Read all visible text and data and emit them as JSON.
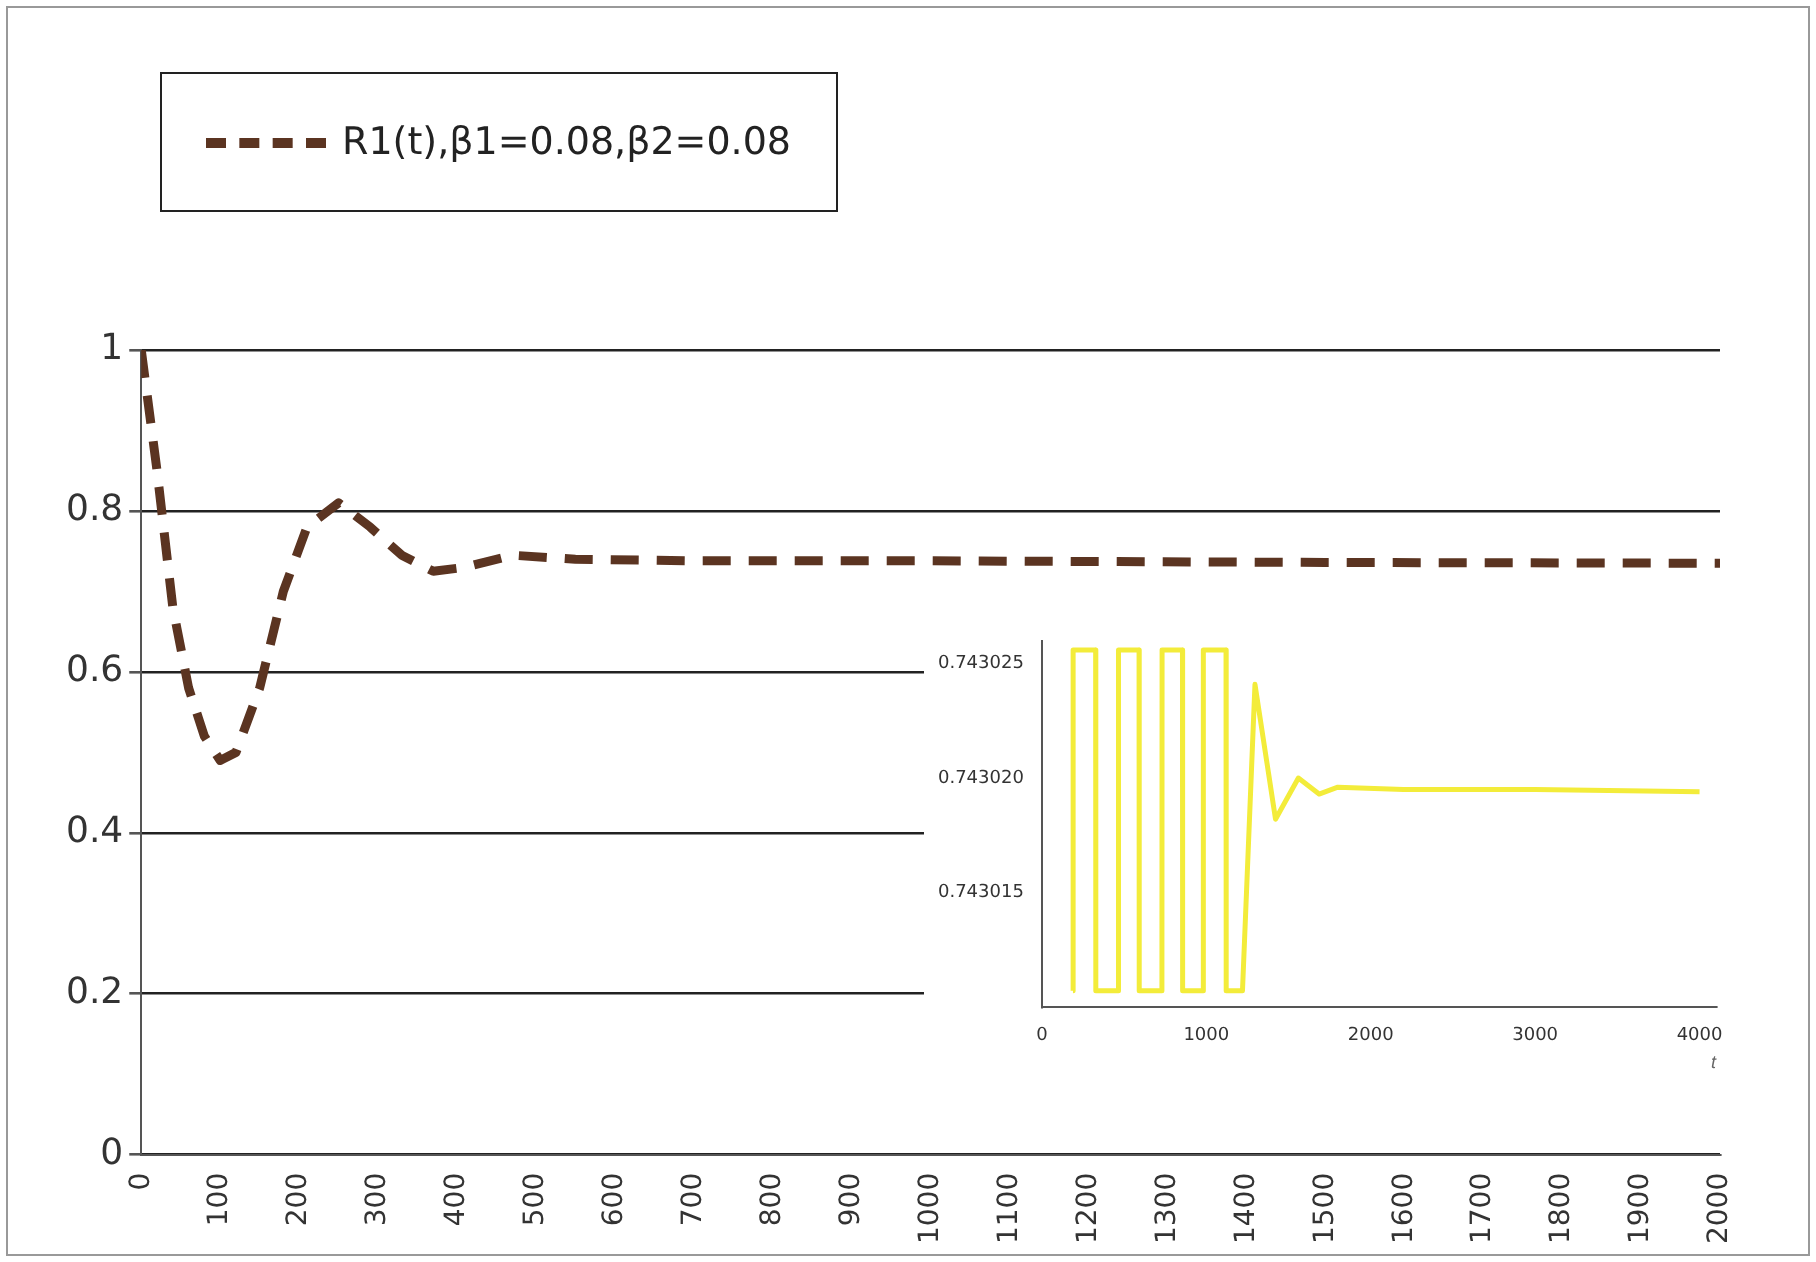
{
  "chart_data": [
    {
      "type": "line",
      "xlim": [
        0,
        2000
      ],
      "xticks": [
        0,
        100,
        200,
        300,
        400,
        500,
        600,
        700,
        800,
        900,
        1000,
        1100,
        1200,
        1300,
        1400,
        1500,
        1600,
        1700,
        1800,
        1900,
        2000
      ],
      "ylim": [
        0,
        1
      ],
      "yticks": [
        0,
        0.2,
        0.4,
        0.6,
        0.8,
        1
      ],
      "grid": "y",
      "legend": "top left",
      "line_style": "dashed",
      "marker": "none",
      "series": [
        {
          "name": "R1(t),β1=0.08,β2=0.08",
          "color": "#5b3421",
          "x": [
            0,
            20,
            40,
            60,
            80,
            100,
            120,
            150,
            180,
            210,
            250,
            290,
            330,
            370,
            410,
            470,
            550,
            700,
            1000,
            1500,
            2000
          ],
          "values": [
            1,
            0.85,
            0.68,
            0.58,
            0.52,
            0.49,
            0.5,
            0.58,
            0.7,
            0.78,
            0.81,
            0.78,
            0.745,
            0.725,
            0.73,
            0.745,
            0.74,
            0.738,
            0.738,
            0.736,
            0.735
          ]
        }
      ]
    },
    {
      "type": "line",
      "xlabel": "t",
      "xlim": [
        0,
        4100
      ],
      "xticks": [
        0,
        1000,
        2000,
        3000,
        4000
      ],
      "ylim": [
        0.74301,
        0.743026
      ],
      "yticks": [
        0.743015,
        {
          "value": 0.74302,
          "label": "0.743020"
        },
        0.743025
      ],
      "line_style": "solid",
      "marker": "none",
      "series": [
        {
          "color": "#f3ec3a",
          "x": [
            189,
            190,
            327,
            328,
            465,
            466,
            591,
            592,
            730,
            731,
            855,
            856,
            981,
            982,
            1120,
            1121,
            1220,
            1296,
            1421,
            1560,
            1686,
            1800,
            2200,
            3000,
            4000
          ],
          "values": [
            0.7430107,
            0.7430256,
            0.7430256,
            0.7430107,
            0.7430107,
            0.7430256,
            0.7430256,
            0.7430107,
            0.7430107,
            0.7430256,
            0.7430256,
            0.7430107,
            0.7430107,
            0.7430256,
            0.7430256,
            0.7430107,
            0.7430107,
            0.7430241,
            0.7430182,
            0.74302,
            0.7430193,
            0.7430196,
            0.7430195,
            0.7430195,
            0.7430194
          ]
        }
      ]
    }
  ]
}
